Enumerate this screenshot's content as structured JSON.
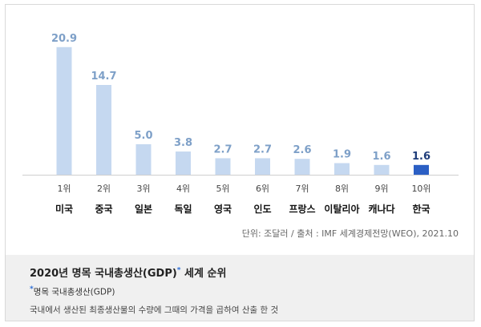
{
  "chart_data": {
    "type": "bar",
    "title": "",
    "ranks": [
      "1위",
      "2위",
      "3위",
      "4위",
      "5위",
      "6위",
      "7위",
      "8위",
      "9위",
      "10위"
    ],
    "categories": [
      "미국",
      "중국",
      "일본",
      "독일",
      "영국",
      "인도",
      "프랑스",
      "이탈리아",
      "캐나다",
      "한국"
    ],
    "values": [
      20.9,
      14.7,
      5.0,
      3.8,
      2.7,
      2.7,
      2.6,
      1.9,
      1.6,
      1.6
    ],
    "value_labels": [
      "20.9",
      "14.7",
      "5.0",
      "3.8",
      "2.7",
      "2.7",
      "2.6",
      "1.9",
      "1.6",
      "1.6"
    ],
    "ylim": [
      0,
      21
    ],
    "highlight_index": 9,
    "colors": {
      "bar": "#c5d8f0",
      "highlight": "#2b5fc4",
      "label": "#7ea0c8",
      "label_highlight": "#1f3d7a"
    },
    "grid": false,
    "legend": "none"
  },
  "unit_note": "단위: 조달러 / 출처 : IMF 세계경제전망(WEO), 2021.10",
  "footer": {
    "title": "2020년 명목 국내총생산(GDP)",
    "title_suffix": " 세계 순위",
    "star": "*",
    "note": "명목 국내총생산(GDP)",
    "description": "국내에서 생산된 최종생산물의 수량에 그때의 가격을 곱하여 산출 한 것"
  }
}
